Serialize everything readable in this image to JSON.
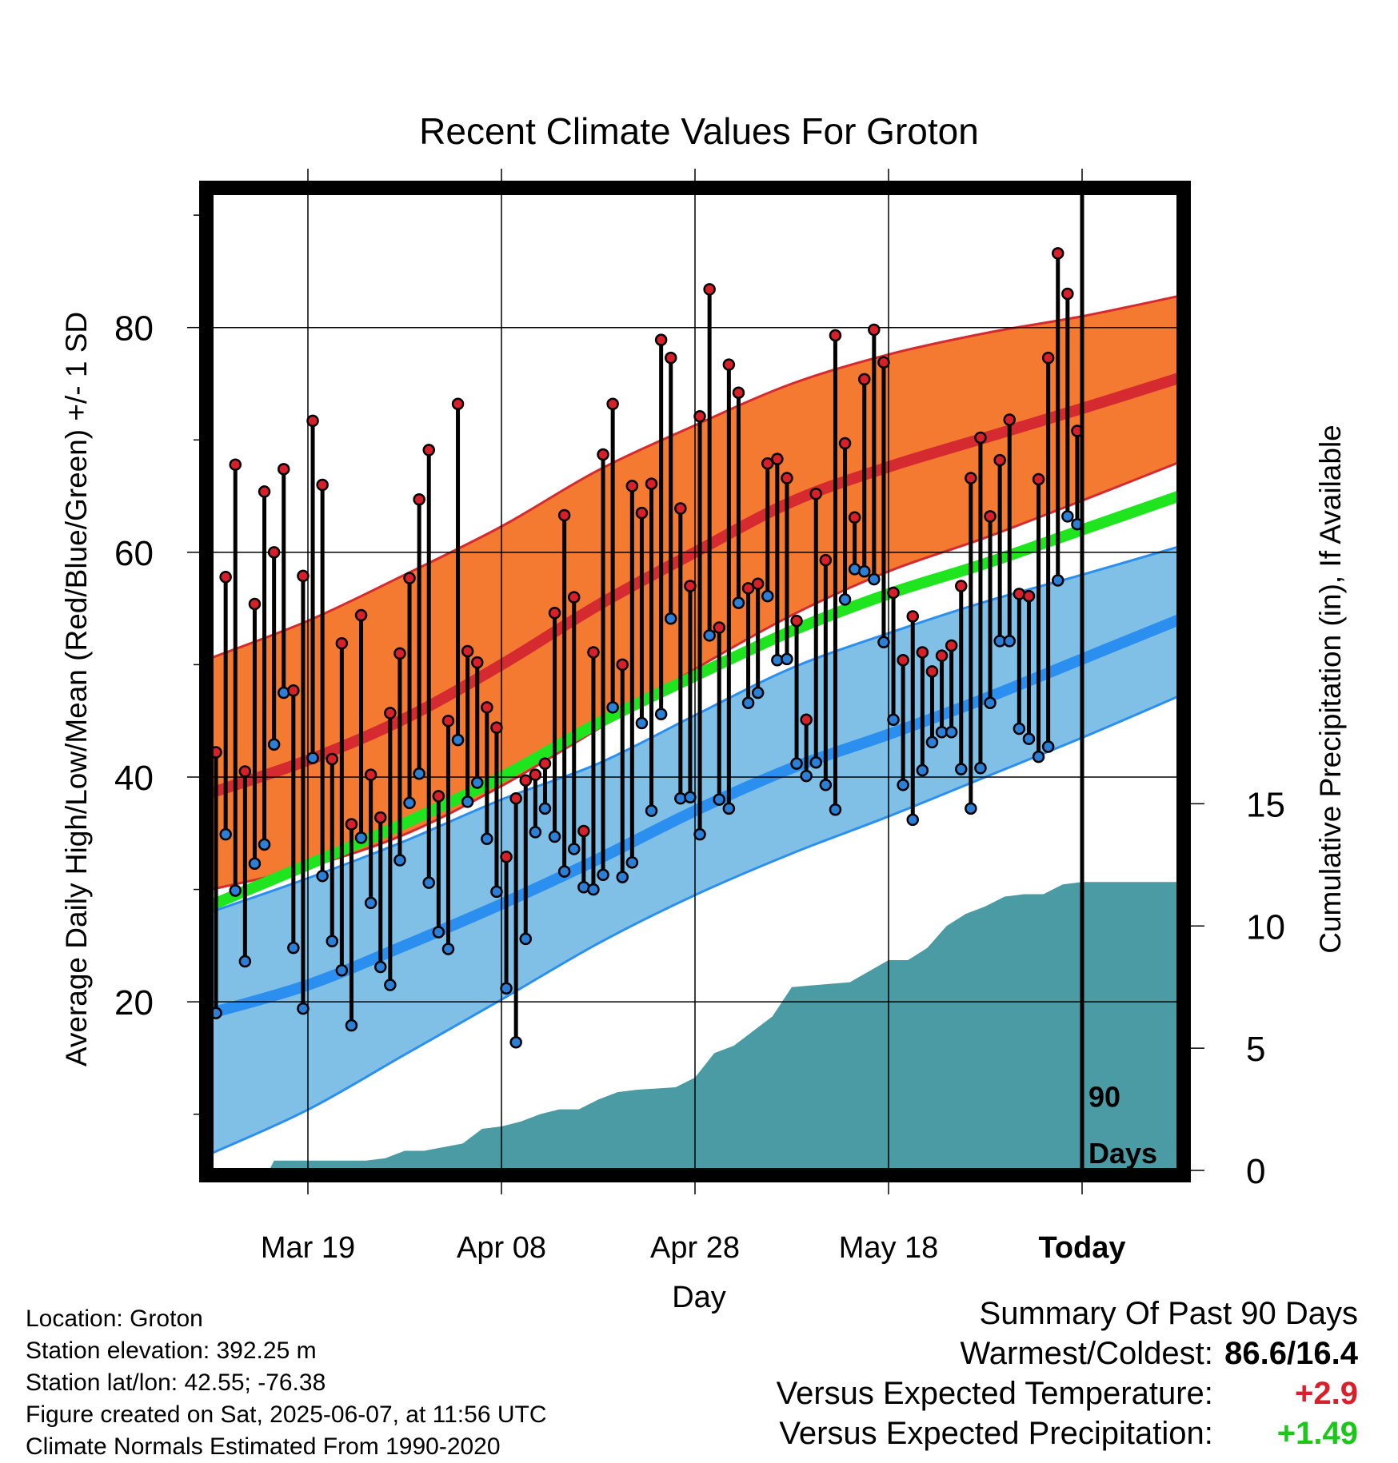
{
  "chart_data": {
    "type": "line",
    "title": "Recent Climate Values For Groton",
    "xlabel": "Day",
    "ylabel_left": "Average Daily High/Low/Mean (Red/Blue/Green) +/- 1 SD",
    "ylabel_right": "Cumulative Precipitation (in), If Available",
    "x_ticks": [
      "Mar 19",
      "Apr 08",
      "Apr 28",
      "May 18",
      "Today"
    ],
    "x_tick_days": [
      10,
      30,
      50,
      70,
      90
    ],
    "xlim": [
      0,
      100
    ],
    "ylim_left": [
      5,
      92
    ],
    "y_ticks_left": [
      20,
      40,
      60,
      80
    ],
    "ylim_right": [
      0,
      40
    ],
    "y_ticks_right": [
      0,
      5,
      10,
      15
    ],
    "today_marker": {
      "day": 90,
      "label_line1": "90",
      "label_line2": "Days"
    },
    "normals": {
      "days": [
        0,
        10,
        20,
        30,
        40,
        50,
        60,
        70,
        80,
        90,
        100
      ],
      "high_mean": [
        38.6,
        41.5,
        45.2,
        50.0,
        55.3,
        60.0,
        64.5,
        67.6,
        70.2,
        72.8,
        75.5
      ],
      "high_upper": [
        50.6,
        53.9,
        58.0,
        62.3,
        67.3,
        71.3,
        75.0,
        77.6,
        79.5,
        81.0,
        82.8
      ],
      "high_lower": [
        30.0,
        32.0,
        34.9,
        39.2,
        44.3,
        49.6,
        54.4,
        58.3,
        61.3,
        64.6,
        68.0
      ],
      "mean_mean": [
        28.6,
        32.2,
        35.9,
        40.0,
        44.8,
        49.0,
        53.0,
        56.3,
        59.0,
        62.0,
        65.0
      ],
      "low_mean": [
        19.0,
        21.5,
        25.0,
        28.7,
        32.7,
        37.0,
        40.8,
        43.8,
        47.0,
        50.5,
        54.0
      ],
      "low_upper": [
        28.0,
        31.0,
        34.3,
        38.0,
        41.2,
        45.5,
        49.7,
        52.8,
        55.6,
        58.0,
        60.5
      ],
      "low_lower": [
        6.5,
        10.4,
        15.3,
        20.2,
        25.2,
        29.5,
        33.2,
        36.5,
        40.0,
        43.5,
        47.2
      ]
    },
    "series": [
      {
        "name": "Daily High",
        "color": "#d8202a",
        "values": [
          42.2,
          57.8,
          67.8,
          40.5,
          55.4,
          65.4,
          60.0,
          67.4,
          47.7,
          57.9,
          71.7,
          66.0,
          41.6,
          51.9,
          35.8,
          54.4,
          40.2,
          36.4,
          45.7,
          51.0,
          57.7,
          64.7,
          69.1,
          38.3,
          45.0,
          73.2,
          51.2,
          50.2,
          46.2,
          44.4,
          32.9,
          38.1,
          39.7,
          40.2,
          41.2,
          54.6,
          63.3,
          56.0,
          35.2,
          51.1,
          68.7,
          73.2,
          50.0,
          65.9,
          63.5,
          66.1,
          78.9,
          77.3,
          63.9,
          57.0,
          72.1,
          83.4,
          53.3,
          76.7,
          74.2,
          56.8,
          57.2,
          67.9,
          68.3,
          66.6,
          53.9,
          45.1,
          65.2,
          59.3,
          79.3,
          69.7,
          63.1,
          75.4,
          79.8,
          76.9,
          56.4,
          50.4,
          54.3,
          51.1,
          49.4,
          50.8,
          51.7,
          57.0,
          66.6,
          70.2,
          63.2,
          68.2,
          71.8,
          56.3,
          56.1,
          66.5,
          77.3,
          86.6,
          83.0,
          70.8
        ]
      },
      {
        "name": "Daily Low",
        "color": "#2c7fd6",
        "values": [
          19.0,
          34.9,
          29.9,
          23.6,
          32.3,
          34.0,
          42.9,
          47.5,
          24.8,
          19.4,
          41.7,
          31.2,
          25.4,
          22.8,
          17.9,
          34.6,
          28.8,
          23.1,
          21.5,
          32.6,
          37.7,
          40.3,
          30.6,
          26.2,
          24.7,
          43.3,
          37.8,
          39.5,
          34.5,
          29.8,
          21.2,
          16.4,
          25.6,
          35.1,
          37.2,
          34.7,
          31.6,
          33.6,
          30.2,
          30.0,
          31.3,
          46.2,
          31.1,
          32.4,
          44.8,
          37.0,
          45.6,
          54.1,
          38.1,
          38.2,
          34.9,
          52.6,
          38.0,
          37.2,
          55.5,
          46.6,
          47.5,
          56.1,
          50.4,
          50.5,
          41.2,
          40.1,
          41.3,
          39.3,
          37.1,
          55.8,
          58.5,
          58.3,
          57.6,
          52.0,
          45.1,
          39.3,
          36.2,
          40.6,
          43.1,
          44.0,
          44.0,
          40.7,
          37.2,
          40.8,
          46.6,
          52.1,
          52.1,
          44.3,
          43.4,
          41.8,
          42.7,
          57.5,
          63.2,
          62.5
        ]
      }
    ],
    "cumulative_precip": {
      "days": [
        0,
        6,
        6.5,
        16,
        18,
        20,
        22,
        26,
        28,
        30,
        32,
        34,
        36,
        38,
        40,
        42,
        44,
        48,
        50,
        52,
        54,
        56,
        58,
        60,
        66,
        70,
        72,
        74,
        76,
        78,
        80,
        82,
        84,
        86,
        88,
        90,
        100
      ],
      "values": [
        0,
        0,
        0.4,
        0.4,
        0.5,
        0.8,
        0.8,
        1.1,
        1.7,
        1.8,
        2.0,
        2.3,
        2.5,
        2.5,
        2.9,
        3.2,
        3.3,
        3.4,
        3.8,
        4.8,
        5.1,
        5.7,
        6.3,
        7.5,
        7.7,
        8.6,
        8.6,
        9.1,
        10.0,
        10.5,
        10.8,
        11.2,
        11.3,
        11.3,
        11.7,
        11.8,
        11.8
      ]
    }
  },
  "info": {
    "location": "Location: Groton",
    "elevation": "Station elevation: 392.25 m",
    "latlon": "Station lat/lon: 42.55; -76.38",
    "created": "Figure created on Sat, 2025-06-07, at 11:56 UTC",
    "normals_period": "Climate Normals Estimated From 1990-2020"
  },
  "summary": {
    "heading": "Summary Of Past 90 Days",
    "warmest_coldest_label": "Warmest/Coldest:",
    "warmest_coldest_value": "86.6/16.4",
    "temp_label": "Versus Expected Temperature:",
    "temp_value": "+2.9",
    "precip_label": "Versus Expected Precipitation:",
    "precip_value": "+1.49"
  },
  "colors": {
    "high_band": "#f37a30",
    "high_line": "#d52a2f",
    "mean_line": "#1fe51f",
    "low_band": "#80c0e6",
    "low_line": "#2b8ff0",
    "precip_fill": "#4a9ba3"
  }
}
